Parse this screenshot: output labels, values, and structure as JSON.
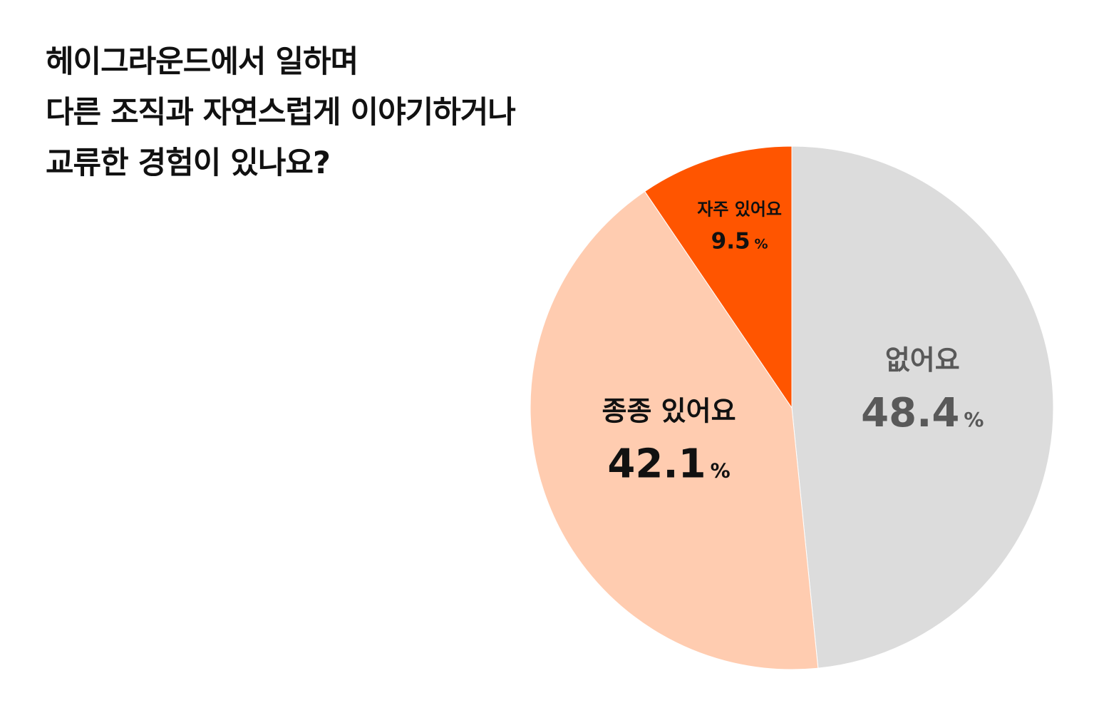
{
  "chart_data": {
    "type": "pie",
    "title": "헤이그라운드에서 일하며 다른 조직과 자연스럽게 이야기하거나 교류한 경험이 있나요?",
    "title_lines": [
      "헤이그라운드에서 일하며",
      "다른 조직과 자연스럽게 이야기하거나",
      "교류한 경험이 있나요?"
    ],
    "unit": "%",
    "legend": "none",
    "slices": [
      {
        "label": "없어요",
        "value": 48.4,
        "value_text": "48.4",
        "color": "#dcdcdc",
        "text_color": "#595959",
        "size": "large"
      },
      {
        "label": "종종 있어요",
        "value": 42.1,
        "value_text": "42.1",
        "color": "#ffccb0",
        "text_color": "#111111",
        "size": "large"
      },
      {
        "label": "자주 있어요",
        "value": 9.5,
        "value_text": "9.5",
        "color": "#ff5500",
        "text_color": "#111111",
        "size": "small"
      }
    ]
  }
}
